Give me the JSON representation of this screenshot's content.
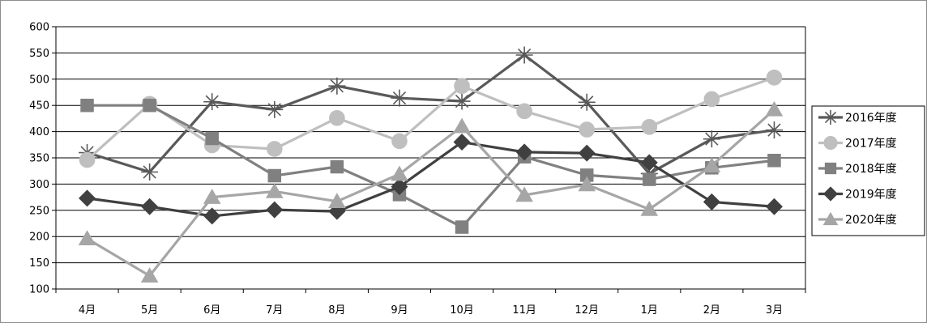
{
  "chart_data": {
    "type": "line",
    "title": "",
    "xlabel": "",
    "ylabel": "",
    "categories": [
      "4月",
      "5月",
      "6月",
      "7月",
      "8月",
      "9月",
      "10月",
      "11月",
      "12月",
      "1月",
      "2月",
      "3月"
    ],
    "ylim": [
      100,
      600
    ],
    "yticks": [
      100,
      150,
      200,
      250,
      300,
      350,
      400,
      450,
      500,
      550,
      600
    ],
    "grid": "horizontal",
    "legend_position": "right",
    "series": [
      {
        "name": "2016年度",
        "marker": "star",
        "color": "#595959",
        "values": [
          360,
          323,
          457,
          442,
          487,
          464,
          458,
          546,
          456,
          320,
          386,
          403
        ]
      },
      {
        "name": "2017年度",
        "marker": "circle",
        "color": "#bfbfbf",
        "values": [
          346,
          453,
          374,
          367,
          426,
          382,
          487,
          439,
          404,
          409,
          462,
          503
        ]
      },
      {
        "name": "2018年度",
        "marker": "square",
        "color": "#808080",
        "values": [
          450,
          450,
          387,
          316,
          333,
          280,
          218,
          352,
          317,
          309,
          331,
          345
        ]
      },
      {
        "name": "2019年度",
        "marker": "diamond",
        "color": "#404040",
        "values": [
          273,
          257,
          239,
          251,
          248,
          295,
          380,
          361,
          359,
          341,
          266,
          257
        ]
      },
      {
        "name": "2020年度",
        "marker": "triangle",
        "color": "#a6a6a6",
        "values": [
          196,
          125,
          275,
          286,
          267,
          319,
          410,
          279,
          299,
          252,
          335,
          442
        ]
      }
    ]
  }
}
